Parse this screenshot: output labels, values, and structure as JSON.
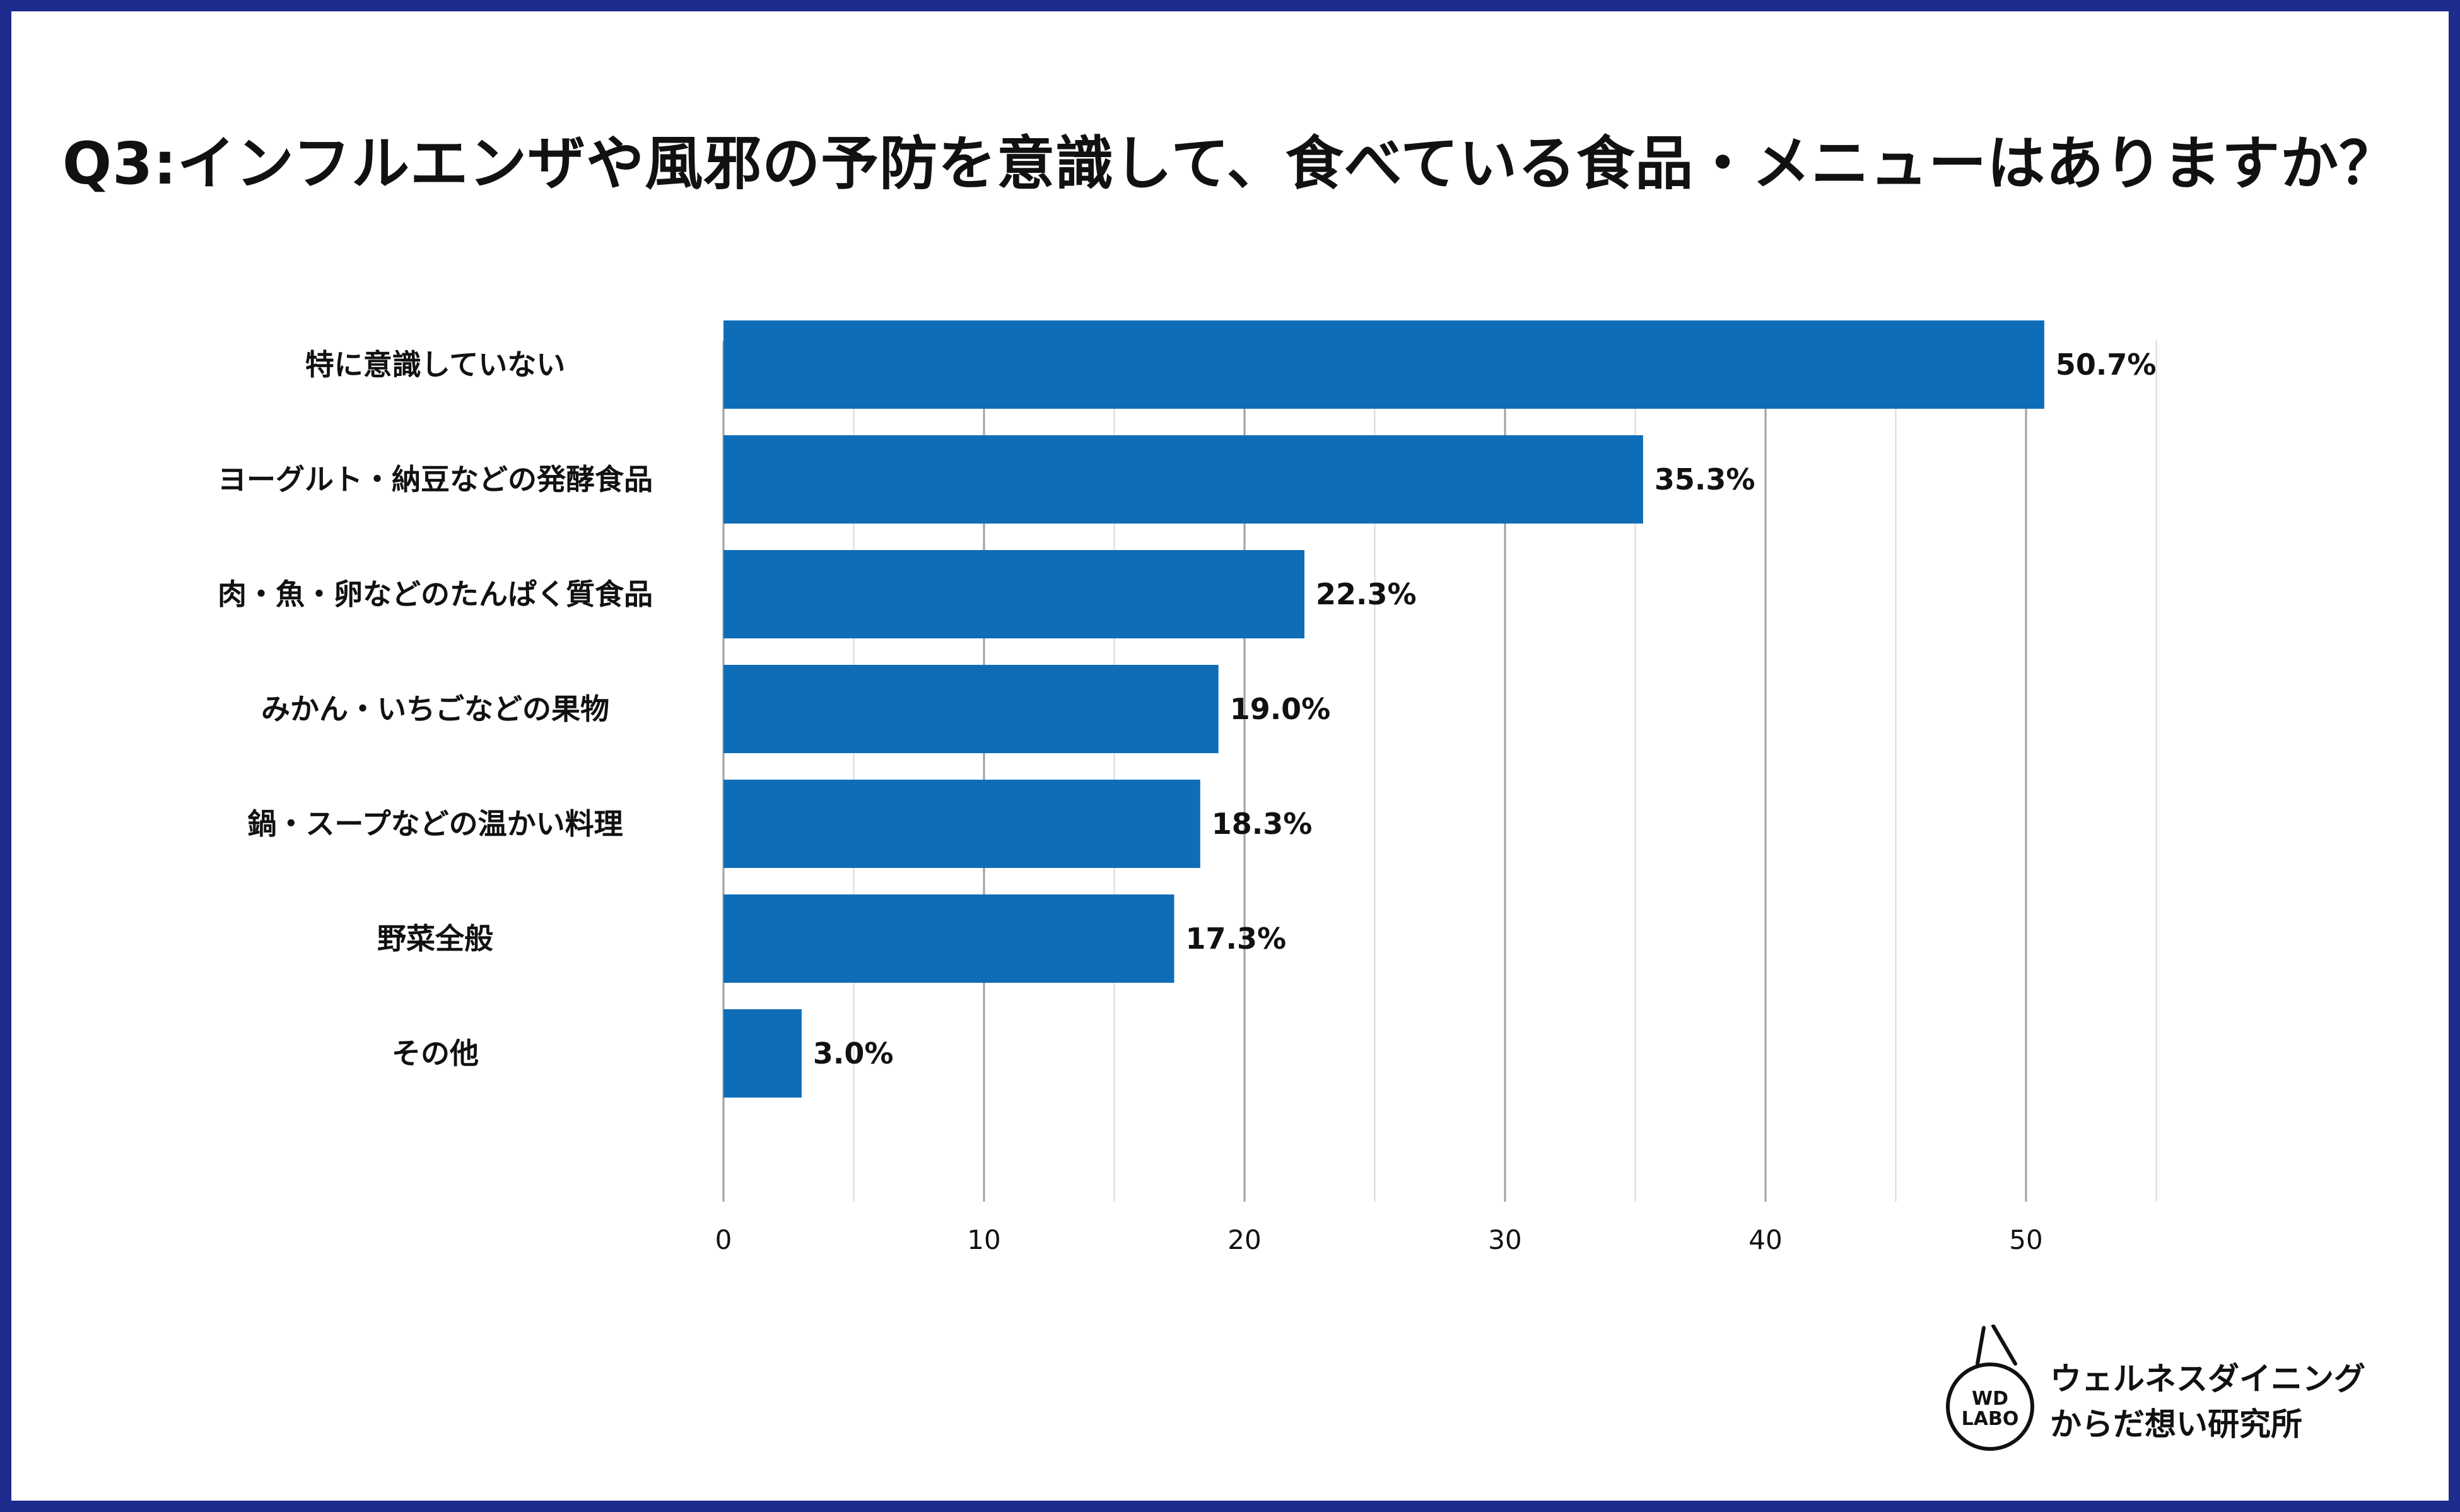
{
  "chart_data": {
    "type": "bar",
    "orientation": "horizontal",
    "title": "Q3:インフルエンザや風邪の予防を意識して、食べている食品・メニューはありますか？",
    "categories": [
      "特に意識していない",
      "ヨーグルト・納豆などの発酵食品",
      "肉・魚・卵などのたんぱく質食品",
      "みかん・いちごなどの果物",
      "鍋・スープなどの温かい料理",
      "野菜全般",
      "その他"
    ],
    "values": [
      50.7,
      35.3,
      22.3,
      19.0,
      18.3,
      17.3,
      3.0
    ],
    "value_labels": [
      "50.7%",
      "35.3%",
      "22.3%",
      "19.0%",
      "18.3%",
      "17.3%",
      "3.0%"
    ],
    "xlim": [
      0,
      55
    ],
    "xticks": [
      0,
      10,
      20,
      30,
      40,
      50
    ],
    "xtick_labels": [
      "0",
      "10",
      "20",
      "30",
      "40",
      "50"
    ],
    "grid": true,
    "bar_color": "#0f6db8"
  },
  "colors": {
    "border": "#1d2c8c",
    "bar": "#0f6db8",
    "gridline_major": "#a0a0a0",
    "gridline_minor": "#d8d8d8",
    "text": "#111111"
  },
  "logo": {
    "mark_line1": "WD",
    "mark_line2": "LABO",
    "name_line1": "ウェルネスダイニング",
    "name_line2": "からだ想い研究所"
  }
}
